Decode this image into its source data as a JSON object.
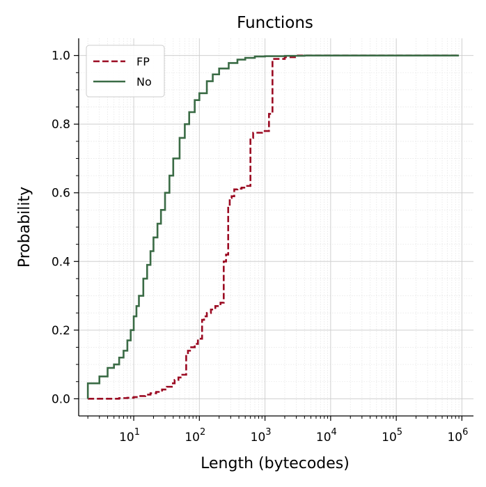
{
  "chart_data": {
    "type": "line",
    "title": "Functions",
    "xlabel": "Length (bytecodes)",
    "ylabel": "Probability",
    "xscale": "log",
    "xlim": [
      1.45,
      1500000
    ],
    "ylim": [
      -0.05,
      1.05
    ],
    "x_ticks": [
      {
        "value": 10,
        "base": "10",
        "exp": "1"
      },
      {
        "value": 100,
        "base": "10",
        "exp": "2"
      },
      {
        "value": 1000,
        "base": "10",
        "exp": "3"
      },
      {
        "value": 10000,
        "base": "10",
        "exp": "4"
      },
      {
        "value": 100000,
        "base": "10",
        "exp": "5"
      },
      {
        "value": 1000000,
        "base": "10",
        "exp": "6"
      }
    ],
    "y_ticks": [
      {
        "value": 0.0,
        "label": "0.0"
      },
      {
        "value": 0.2,
        "label": "0.2"
      },
      {
        "value": 0.4,
        "label": "0.4"
      },
      {
        "value": 0.6,
        "label": "0.6"
      },
      {
        "value": 0.8,
        "label": "0.8"
      },
      {
        "value": 1.0,
        "label": "1.0"
      }
    ],
    "grid": true,
    "legend_position": "top-left",
    "series": [
      {
        "name": "FP",
        "color": "#9b0a22",
        "style": "dashed",
        "step": true,
        "points": [
          [
            2,
            0.0
          ],
          [
            4,
            0.0
          ],
          [
            6,
            0.002
          ],
          [
            8,
            0.003
          ],
          [
            10,
            0.005
          ],
          [
            12,
            0.008
          ],
          [
            15,
            0.012
          ],
          [
            18,
            0.016
          ],
          [
            22,
            0.02
          ],
          [
            27,
            0.027
          ],
          [
            32,
            0.035
          ],
          [
            38,
            0.045
          ],
          [
            42,
            0.055
          ],
          [
            48,
            0.062
          ],
          [
            55,
            0.07
          ],
          [
            63,
            0.13
          ],
          [
            67,
            0.14
          ],
          [
            75,
            0.15
          ],
          [
            85,
            0.16
          ],
          [
            95,
            0.175
          ],
          [
            110,
            0.23
          ],
          [
            118,
            0.24
          ],
          [
            130,
            0.25
          ],
          [
            150,
            0.26
          ],
          [
            175,
            0.27
          ],
          [
            210,
            0.28
          ],
          [
            235,
            0.4
          ],
          [
            255,
            0.42
          ],
          [
            275,
            0.56
          ],
          [
            290,
            0.585
          ],
          [
            310,
            0.59
          ],
          [
            340,
            0.61
          ],
          [
            380,
            0.612
          ],
          [
            440,
            0.615
          ],
          [
            500,
            0.62
          ],
          [
            600,
            0.76
          ],
          [
            660,
            0.775
          ],
          [
            900,
            0.78
          ],
          [
            1150,
            0.83
          ],
          [
            1300,
            0.99
          ],
          [
            2000,
            0.995
          ],
          [
            3000,
            1.0
          ],
          [
            900000,
            1.0
          ]
        ]
      },
      {
        "name": "No",
        "color": "#3a6b45",
        "style": "solid",
        "step": true,
        "points": [
          [
            2,
            0.0
          ],
          [
            2,
            0.045
          ],
          [
            3,
            0.065
          ],
          [
            4,
            0.09
          ],
          [
            5,
            0.1
          ],
          [
            6,
            0.12
          ],
          [
            7,
            0.14
          ],
          [
            8,
            0.17
          ],
          [
            9,
            0.2
          ],
          [
            10,
            0.24
          ],
          [
            11,
            0.27
          ],
          [
            12,
            0.3
          ],
          [
            14,
            0.35
          ],
          [
            16,
            0.39
          ],
          [
            18,
            0.43
          ],
          [
            20,
            0.47
          ],
          [
            23,
            0.51
          ],
          [
            26,
            0.55
          ],
          [
            30,
            0.6
          ],
          [
            35,
            0.65
          ],
          [
            40,
            0.7
          ],
          [
            50,
            0.76
          ],
          [
            60,
            0.8
          ],
          [
            70,
            0.835
          ],
          [
            85,
            0.87
          ],
          [
            100,
            0.89
          ],
          [
            130,
            0.925
          ],
          [
            160,
            0.945
          ],
          [
            200,
            0.962
          ],
          [
            280,
            0.978
          ],
          [
            380,
            0.988
          ],
          [
            500,
            0.993
          ],
          [
            700,
            0.997
          ],
          [
            1000,
            0.998
          ],
          [
            2000,
            0.999
          ],
          [
            4000,
            1.0
          ],
          [
            900000,
            1.0
          ]
        ]
      }
    ]
  }
}
